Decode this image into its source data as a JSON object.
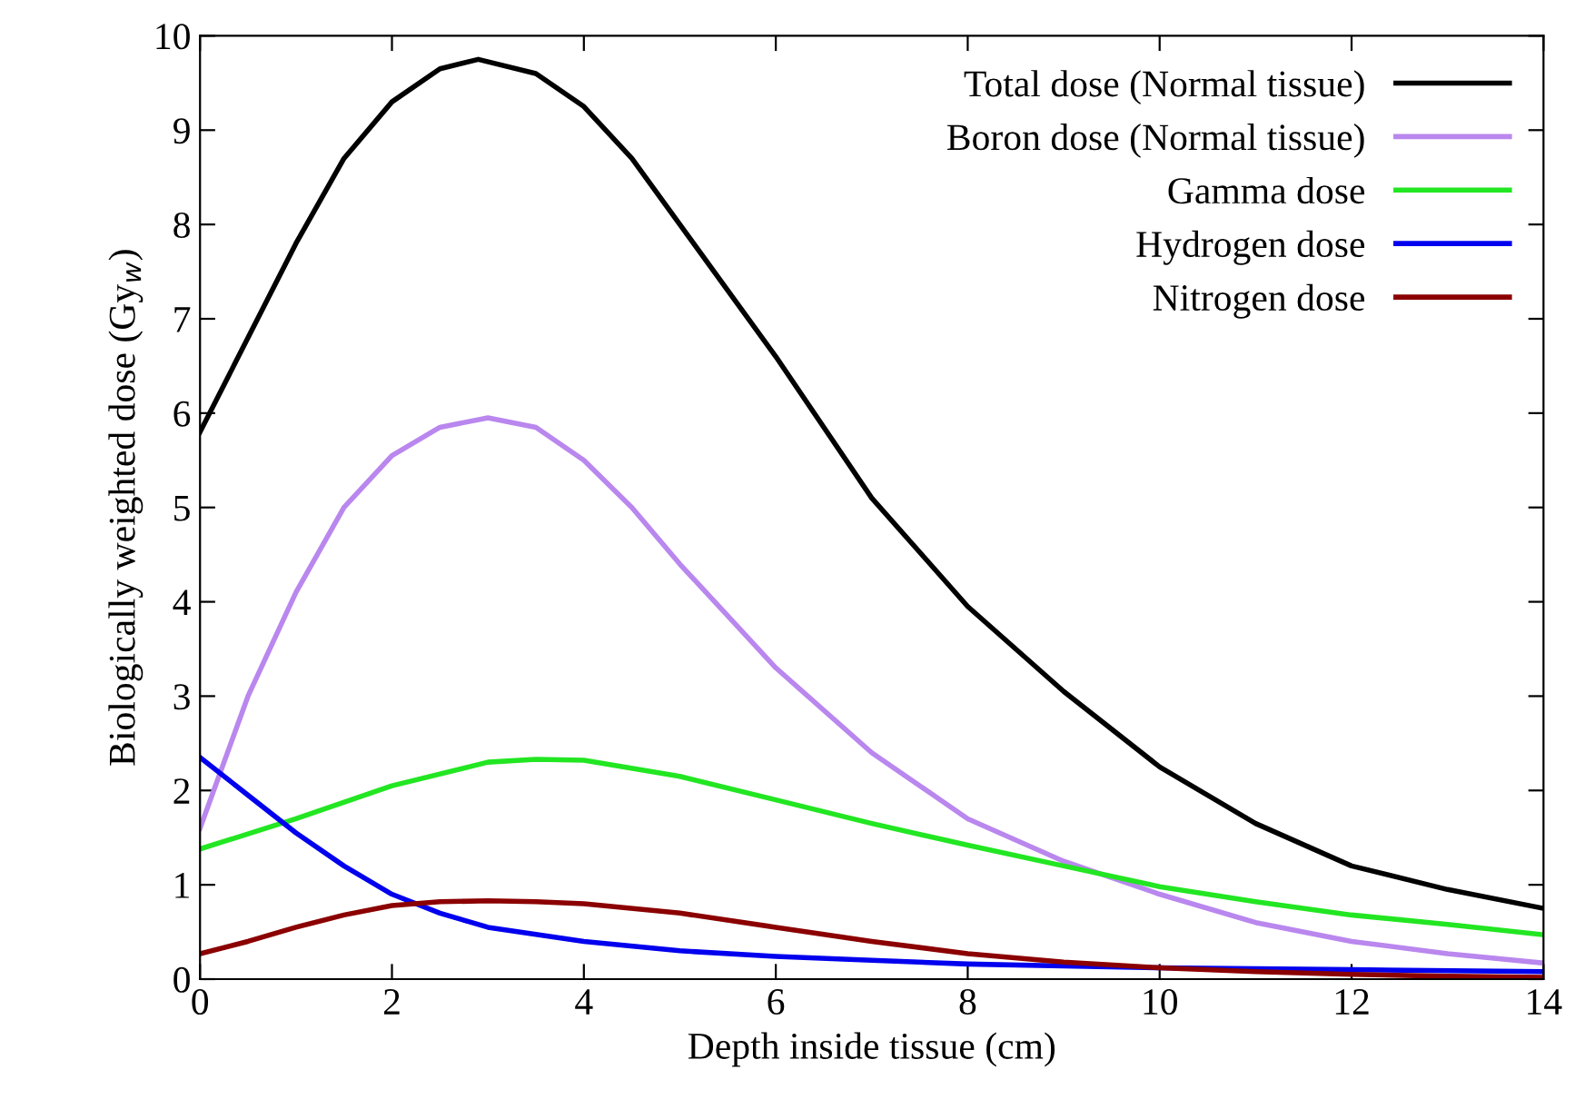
{
  "chart_data": {
    "type": "line",
    "xlabel": "Depth inside tissue (cm)",
    "ylabel": "Biologically weighted dose (Gy$_{w}$)",
    "xlim": [
      0,
      14
    ],
    "ylim": [
      0,
      10
    ],
    "xticks": [
      0,
      2,
      4,
      6,
      8,
      10,
      12,
      14
    ],
    "yticks": [
      0,
      1,
      2,
      3,
      4,
      5,
      6,
      7,
      8,
      9,
      10
    ],
    "grid": false,
    "legend": "top right",
    "marker": "none",
    "line_style": "solid",
    "series": [
      {
        "name": "Total dose (Normal tissue)",
        "color": "#000000",
        "x": [
          0,
          0.5,
          1,
          1.5,
          2,
          2.5,
          2.9,
          3.5,
          4,
          4.5,
          5,
          5.5,
          6,
          7,
          8,
          9,
          10,
          11,
          12,
          13,
          14
        ],
        "values": [
          5.8,
          6.8,
          7.8,
          8.7,
          9.3,
          9.65,
          9.75,
          9.6,
          9.25,
          8.7,
          8.0,
          7.3,
          6.6,
          5.1,
          3.95,
          3.05,
          2.25,
          1.65,
          1.2,
          0.95,
          0.75
        ]
      },
      {
        "name": "Boron dose (Normal tissue)",
        "color": "#b987ee",
        "x": [
          0,
          0.5,
          1,
          1.5,
          2,
          2.5,
          3,
          3.5,
          4,
          4.5,
          5,
          5.5,
          6,
          7,
          8,
          9,
          10,
          11,
          12,
          13,
          14
        ],
        "values": [
          1.6,
          3.0,
          4.1,
          5.0,
          5.55,
          5.85,
          5.95,
          5.85,
          5.5,
          5.0,
          4.4,
          3.85,
          3.3,
          2.4,
          1.7,
          1.25,
          0.9,
          0.6,
          0.4,
          0.27,
          0.17
        ]
      },
      {
        "name": "Gamma dose",
        "color": "#22e622",
        "x": [
          0,
          1,
          2,
          3,
          3.5,
          4,
          5,
          6,
          7,
          8,
          9,
          10,
          11,
          12,
          13,
          14
        ],
        "values": [
          1.38,
          1.7,
          2.05,
          2.3,
          2.33,
          2.32,
          2.15,
          1.9,
          1.65,
          1.42,
          1.2,
          0.98,
          0.82,
          0.68,
          0.58,
          0.47
        ]
      },
      {
        "name": "Hydrogen dose",
        "color": "#0000ee",
        "x": [
          0,
          0.5,
          1,
          1.5,
          2,
          2.5,
          3,
          4,
          5,
          6,
          7,
          8,
          9,
          10,
          12,
          14
        ],
        "values": [
          2.35,
          1.95,
          1.55,
          1.2,
          0.9,
          0.7,
          0.55,
          0.4,
          0.3,
          0.24,
          0.2,
          0.16,
          0.14,
          0.12,
          0.1,
          0.08
        ]
      },
      {
        "name": "Nitrogen dose",
        "color": "#8b0000",
        "x": [
          0,
          0.5,
          1,
          1.5,
          2,
          2.5,
          3,
          3.5,
          4,
          5,
          6,
          7,
          8,
          9,
          10,
          11,
          12,
          13,
          14
        ],
        "values": [
          0.27,
          0.4,
          0.55,
          0.68,
          0.78,
          0.82,
          0.83,
          0.82,
          0.8,
          0.7,
          0.55,
          0.4,
          0.27,
          0.18,
          0.12,
          0.08,
          0.05,
          0.03,
          0.02
        ]
      }
    ]
  }
}
